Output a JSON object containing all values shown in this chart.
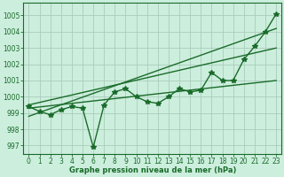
{
  "xlabel": "Graphe pression niveau de la mer (hPa)",
  "bg_color": "#cceedd",
  "grid_color": "#aaccbb",
  "line_color": "#1a6b2a",
  "x_ticks": [
    0,
    1,
    2,
    3,
    4,
    5,
    6,
    7,
    8,
    9,
    10,
    11,
    12,
    13,
    14,
    15,
    16,
    17,
    18,
    19,
    20,
    21,
    22,
    23
  ],
  "ylim": [
    996.5,
    1005.8
  ],
  "yticks": [
    997,
    998,
    999,
    1000,
    1001,
    1002,
    1003,
    1004,
    1005
  ],
  "pressure_data": [
    999.4,
    999.1,
    998.9,
    999.2,
    999.4,
    999.3,
    996.9,
    999.5,
    1000.3,
    1000.5,
    1000.0,
    999.7,
    999.6,
    1000.0,
    1000.5,
    1000.3,
    1000.4,
    1001.5,
    1001.0,
    1001.0,
    1002.3,
    1003.1,
    1004.0,
    1005.1
  ],
  "trend1": [
    999.3,
    1001.0
  ],
  "trend2": [
    998.8,
    1004.2
  ],
  "trend3": [
    999.5,
    1003.0
  ],
  "marker": "*",
  "marker_size": 4,
  "line_width": 1.0,
  "xlabel_fontsize": 6,
  "tick_fontsize": 5.5
}
